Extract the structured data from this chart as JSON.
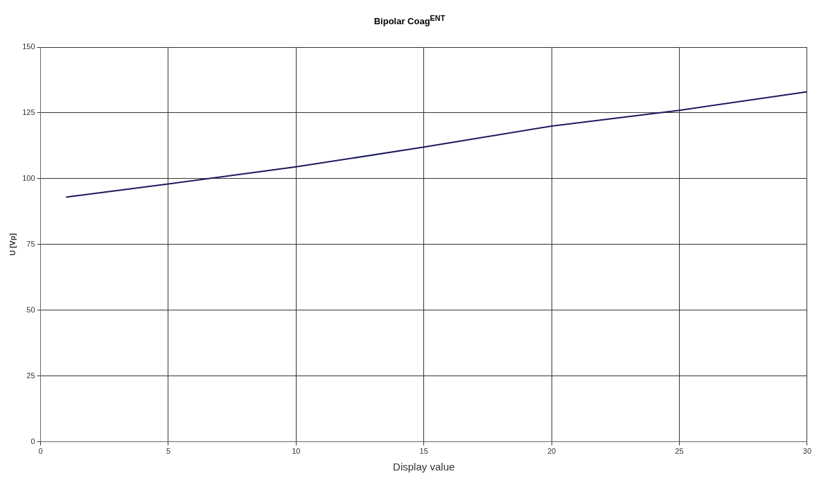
{
  "chart_data": {
    "type": "line",
    "title": "Bipolar Coag$^{ENT}$",
    "xlabel": "Display value",
    "ylabel": "U [Vp]",
    "series": [
      {
        "color": "#1a1a5e",
        "x": [
          1,
          5,
          10,
          15,
          20,
          25,
          30
        ],
        "values": [
          93,
          98,
          104.5,
          112,
          120,
          126,
          133
        ]
      }
    ],
    "xlim": [
      0,
      30
    ],
    "xticks": [
      0,
      5,
      10,
      15,
      20,
      25,
      30
    ],
    "ylim": [
      0,
      150
    ],
    "yticks": [
      0,
      25,
      50,
      75,
      100,
      125,
      150
    ],
    "grid": true,
    "legend": false,
    "marker": "none",
    "line_style": "solid"
  }
}
